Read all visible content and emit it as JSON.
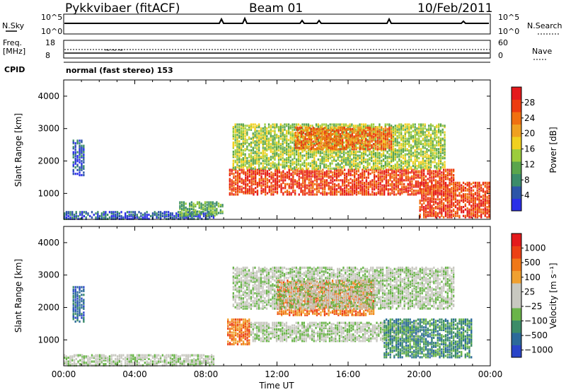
{
  "header": {
    "station": "Pykkvibaer (fitACF)",
    "beam": "Beam 01",
    "date": "10/Feb/2011"
  },
  "top_panels": {
    "nsky_label": "N.Sky",
    "nsky_ticks": [
      "10^5",
      "10^0"
    ],
    "nsearch_label": "N.Search",
    "nsearch_ticks": [
      "10^5",
      "10^0"
    ],
    "freq_label": "Freq.",
    "freq_unit": "[MHz]",
    "freq_ticks": [
      "18",
      "8"
    ],
    "nave_label": "Nave",
    "nave_ticks": [
      "60",
      "0"
    ],
    "cpid_label": "CPID",
    "cpid_text": "normal (fast stereo) 153"
  },
  "colors": {
    "power_scale": [
      "#2a2ee8",
      "#2c55a8",
      "#3b8c6a",
      "#5aa54c",
      "#9ccc3c",
      "#f0d020",
      "#f0a020",
      "#f07010",
      "#ec3c10",
      "#e41a1c"
    ],
    "velocity_scale": [
      "#2a45c8",
      "#2c6a9a",
      "#3c8c68",
      "#6ab44a",
      "#c8c8c0",
      "#c8c8c0",
      "#f0a030",
      "#f07818",
      "#ec4014",
      "#e41a1c"
    ],
    "ground_scatter": "#c8c8c0"
  },
  "chart_data": [
    {
      "type": "heatmap",
      "name": "power",
      "ylabel": "Slant Range [km]",
      "y_ticks": [
        "1000",
        "2000",
        "3000",
        "4000"
      ],
      "ylim": [
        200,
        4500
      ],
      "xlim": [
        0,
        24
      ],
      "x_ticks": [
        "00:00",
        "04:00",
        "08:00",
        "12:00",
        "16:00",
        "20:00",
        "00:00"
      ],
      "colorbar_label": "Power [dB]",
      "colorbar_ticks": [
        "28",
        "24",
        "20",
        "16",
        "12",
        "8",
        "4"
      ],
      "regions": [
        {
          "t0": 0.5,
          "t1": 1.2,
          "r0": 1600,
          "r1": 2700,
          "level": 1
        },
        {
          "t0": 0.0,
          "t1": 8.5,
          "r0": 250,
          "r1": 500,
          "level": 1
        },
        {
          "t0": 6.5,
          "t1": 9.0,
          "r0": 350,
          "r1": 800,
          "level": 3
        },
        {
          "t0": 9.3,
          "t1": 22.0,
          "r0": 1000,
          "r1": 1800,
          "level": 8
        },
        {
          "t0": 9.5,
          "t1": 21.5,
          "r0": 1800,
          "r1": 3200,
          "level": 4
        },
        {
          "t0": 13.0,
          "t1": 18.5,
          "r0": 2400,
          "r1": 3100,
          "level": 7
        },
        {
          "t0": 20.0,
          "t1": 24.0,
          "r0": 300,
          "r1": 1400,
          "level": 8
        }
      ]
    },
    {
      "type": "heatmap",
      "name": "velocity",
      "ylabel": "Slant Range [km]",
      "xlabel": "Time UT",
      "y_ticks": [
        "1000",
        "2000",
        "3000",
        "4000"
      ],
      "ylim": [
        200,
        4500
      ],
      "xlim": [
        0,
        24
      ],
      "x_ticks": [
        "00:00",
        "04:00",
        "08:00",
        "12:00",
        "16:00",
        "20:00",
        "00:00"
      ],
      "colorbar_label": "Velocity [m s⁻¹]",
      "colorbar_ticks": [
        "1000",
        "500",
        "100",
        "25",
        "−25",
        "−100",
        "−500",
        "−1000"
      ],
      "regions": [
        {
          "t0": 0.5,
          "t1": 1.2,
          "r0": 1600,
          "r1": 2700,
          "level": 1
        },
        {
          "t0": 0.0,
          "t1": 8.5,
          "r0": 250,
          "r1": 600,
          "level": 4
        },
        {
          "t0": 9.2,
          "t1": 10.5,
          "r0": 900,
          "r1": 1700,
          "level": 7
        },
        {
          "t0": 10.5,
          "t1": 20.0,
          "r0": 1000,
          "r1": 1600,
          "level": 4
        },
        {
          "t0": 12.0,
          "t1": 17.5,
          "r0": 1800,
          "r1": 2900,
          "level": 7
        },
        {
          "t0": 18.0,
          "t1": 23.0,
          "r0": 500,
          "r1": 1700,
          "level": 2
        },
        {
          "t0": 9.5,
          "t1": 22.0,
          "r0": 2000,
          "r1": 3300,
          "level": 4
        }
      ]
    }
  ]
}
